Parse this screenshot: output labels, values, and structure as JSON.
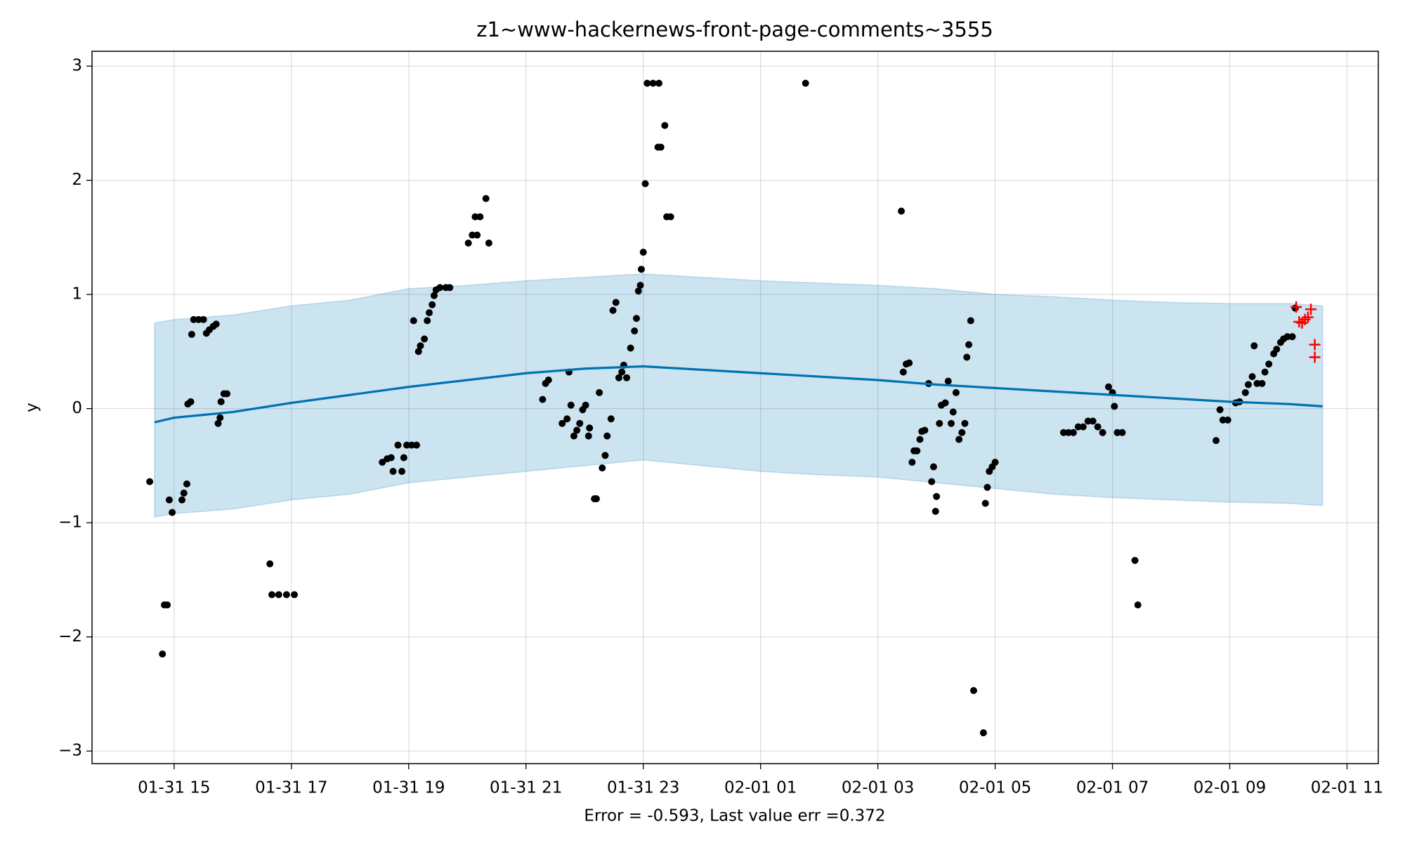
{
  "chart_data": {
    "type": "forecast",
    "title": "z1~www-hackernews-front-page-comments~3555",
    "x_label": "Error = -0.593, Last value err =0.372",
    "y_label": "y",
    "grid": true,
    "xlim": [
      "01-31 13:36",
      "02-01 11:32"
    ],
    "xticks": [
      "01-31 15",
      "01-31 17",
      "01-31 19",
      "01-31 21",
      "01-31 23",
      "02-01 01",
      "02-01 03",
      "02-01 05",
      "02-01 07",
      "02-01 09",
      "02-01 11"
    ],
    "ylim": [
      -3.11,
      3.13
    ],
    "yticks": [
      {
        "value": -3,
        "label": "−3"
      },
      {
        "value": -2,
        "label": "−2"
      },
      {
        "value": -1,
        "label": "−1"
      },
      0,
      1,
      2,
      3
    ],
    "forecast": {
      "color": "#0072b2",
      "band_color": "#0072b2",
      "x": [
        "01-31 14:40",
        "01-31 15:00",
        "01-31 16:00",
        "01-31 17:00",
        "01-31 18:00",
        "01-31 19:00",
        "01-31 20:00",
        "01-31 21:00",
        "01-31 22:00",
        "01-31 23:00",
        "02-01 00:00",
        "02-01 01:00",
        "02-01 02:00",
        "02-01 03:00",
        "02-01 04:00",
        "02-01 05:00",
        "02-01 06:00",
        "02-01 07:00",
        "02-01 08:00",
        "02-01 09:00",
        "02-01 10:00",
        "02-01 10:35"
      ],
      "values": [
        -0.12,
        -0.08,
        -0.03,
        0.05,
        0.12,
        0.19,
        0.25,
        0.31,
        0.35,
        0.37,
        0.34,
        0.31,
        0.28,
        0.25,
        0.21,
        0.18,
        0.15,
        0.12,
        0.09,
        0.06,
        0.04,
        0.02
      ],
      "upper": [
        0.75,
        0.78,
        0.82,
        0.9,
        0.95,
        1.05,
        1.08,
        1.12,
        1.15,
        1.18,
        1.15,
        1.12,
        1.1,
        1.08,
        1.05,
        1.0,
        0.98,
        0.95,
        0.93,
        0.92,
        0.92,
        0.9
      ],
      "lower": [
        -0.95,
        -0.92,
        -0.88,
        -0.8,
        -0.75,
        -0.65,
        -0.6,
        -0.55,
        -0.5,
        -0.45,
        -0.5,
        -0.55,
        -0.58,
        -0.6,
        -0.65,
        -0.7,
        -0.75,
        -0.78,
        -0.8,
        -0.82,
        -0.83,
        -0.85
      ]
    },
    "observed": {
      "color": "#000000",
      "x": [
        "01-31 14:35",
        "01-31 14:48",
        "01-31 14:50",
        "01-31 14:53",
        "01-31 14:55",
        "01-31 14:58",
        "01-31 15:08",
        "01-31 15:10",
        "01-31 15:13",
        "01-31 15:14",
        "01-31 15:17",
        "01-31 15:18",
        "01-31 15:20",
        "01-31 15:25",
        "01-31 15:30",
        "01-31 15:33",
        "01-31 15:36",
        "01-31 15:40",
        "01-31 15:43",
        "01-31 15:45",
        "01-31 15:47",
        "01-31 15:48",
        "01-31 15:51",
        "01-31 15:54",
        "01-31 16:38",
        "01-31 16:40",
        "01-31 16:47",
        "01-31 16:55",
        "01-31 17:03",
        "01-31 18:33",
        "01-31 18:38",
        "01-31 18:42",
        "01-31 18:44",
        "01-31 18:49",
        "01-31 18:53",
        "01-31 18:55",
        "01-31 18:58",
        "01-31 19:03",
        "01-31 19:05",
        "01-31 19:08",
        "01-31 19:10",
        "01-31 19:12",
        "01-31 19:16",
        "01-31 19:19",
        "01-31 19:21",
        "01-31 19:24",
        "01-31 19:26",
        "01-31 19:28",
        "01-31 19:32",
        "01-31 19:38",
        "01-31 19:42",
        "01-31 20:01",
        "01-31 20:05",
        "01-31 20:08",
        "01-31 20:10",
        "01-31 20:13",
        "01-31 20:19",
        "01-31 20:22",
        "01-31 21:17",
        "01-31 21:20",
        "01-31 21:23",
        "01-31 21:37",
        "01-31 21:42",
        "01-31 21:44",
        "01-31 21:46",
        "01-31 21:49",
        "01-31 21:52",
        "01-31 21:55",
        "01-31 21:58",
        "01-31 22:01",
        "01-31 22:04",
        "01-31 22:05",
        "01-31 22:10",
        "01-31 22:12",
        "01-31 22:15",
        "01-31 22:18",
        "01-31 22:21",
        "01-31 22:23",
        "01-31 22:27",
        "01-31 22:29",
        "01-31 22:32",
        "01-31 22:35",
        "01-31 22:38",
        "01-31 22:40",
        "01-31 22:43",
        "01-31 22:47",
        "01-31 22:51",
        "01-31 22:53",
        "01-31 22:55",
        "01-31 22:57",
        "01-31 22:58",
        "01-31 23:00",
        "01-31 23:02",
        "01-31 23:04",
        "01-31 23:10",
        "01-31 23:15",
        "01-31 23:16",
        "01-31 23:18",
        "01-31 23:22",
        "01-31 23:24",
        "01-31 23:28",
        "02-01 01:46",
        "02-01 03:24",
        "02-01 03:26",
        "02-01 03:29",
        "02-01 03:32",
        "02-01 03:35",
        "02-01 03:37",
        "02-01 03:40",
        "02-01 03:43",
        "02-01 03:45",
        "02-01 03:48",
        "02-01 03:52",
        "02-01 03:55",
        "02-01 03:57",
        "02-01 03:59",
        "02-01 04:00",
        "02-01 04:03",
        "02-01 04:05",
        "02-01 04:09",
        "02-01 04:12",
        "02-01 04:15",
        "02-01 04:17",
        "02-01 04:20",
        "02-01 04:23",
        "02-01 04:26",
        "02-01 04:29",
        "02-01 04:31",
        "02-01 04:33",
        "02-01 04:35",
        "02-01 04:38",
        "02-01 04:48",
        "02-01 04:50",
        "02-01 04:52",
        "02-01 04:54",
        "02-01 04:57",
        "02-01 05:00",
        "02-01 06:10",
        "02-01 06:15",
        "02-01 06:20",
        "02-01 06:25",
        "02-01 06:30",
        "02-01 06:35",
        "02-01 06:40",
        "02-01 06:45",
        "02-01 06:50",
        "02-01 06:56",
        "02-01 07:00",
        "02-01 07:02",
        "02-01 07:05",
        "02-01 07:10",
        "02-01 07:23",
        "02-01 07:26",
        "02-01 08:46",
        "02-01 08:50",
        "02-01 08:53",
        "02-01 08:58",
        "02-01 09:06",
        "02-01 09:10",
        "02-01 09:16",
        "02-01 09:19",
        "02-01 09:23",
        "02-01 09:25",
        "02-01 09:28",
        "02-01 09:33",
        "02-01 09:36",
        "02-01 09:40",
        "02-01 09:45",
        "02-01 09:48",
        "02-01 09:52",
        "02-01 09:55",
        "02-01 09:59",
        "02-01 10:04",
        "02-01 10:07"
      ],
      "values": [
        -0.64,
        -2.15,
        -1.72,
        -1.72,
        -0.8,
        -0.91,
        -0.8,
        -0.74,
        -0.66,
        0.04,
        0.06,
        0.65,
        0.78,
        0.78,
        0.78,
        0.66,
        0.69,
        0.72,
        0.74,
        -0.13,
        -0.08,
        0.06,
        0.13,
        0.13,
        -1.36,
        -1.63,
        -1.63,
        -1.63,
        -1.63,
        -0.47,
        -0.44,
        -0.43,
        -0.55,
        -0.32,
        -0.55,
        -0.43,
        -0.32,
        -0.32,
        0.77,
        -0.32,
        0.5,
        0.55,
        0.61,
        0.77,
        0.84,
        0.91,
        0.99,
        1.04,
        1.06,
        1.06,
        1.06,
        1.45,
        1.52,
        1.68,
        1.52,
        1.68,
        1.84,
        1.45,
        0.08,
        0.22,
        0.25,
        -0.13,
        -0.09,
        0.32,
        0.03,
        -0.24,
        -0.19,
        -0.13,
        -0.01,
        0.03,
        -0.24,
        -0.17,
        -0.79,
        -0.79,
        0.14,
        -0.52,
        -0.41,
        -0.24,
        -0.09,
        0.86,
        0.93,
        0.27,
        0.32,
        0.38,
        0.27,
        0.53,
        0.68,
        0.79,
        1.03,
        1.08,
        1.22,
        1.37,
        1.97,
        2.85,
        2.85,
        2.29,
        2.85,
        2.29,
        2.48,
        1.68,
        1.68,
        2.85,
        1.73,
        0.32,
        0.39,
        0.4,
        -0.47,
        -0.37,
        -0.37,
        -0.27,
        -0.2,
        -0.19,
        0.22,
        -0.64,
        -0.51,
        -0.9,
        -0.77,
        -0.13,
        0.03,
        0.05,
        0.24,
        -0.13,
        -0.03,
        0.14,
        -0.27,
        -0.21,
        -0.13,
        0.45,
        0.56,
        0.77,
        -2.47,
        -2.84,
        -0.83,
        -0.69,
        -0.55,
        -0.51,
        -0.47,
        -0.21,
        -0.21,
        -0.21,
        -0.16,
        -0.16,
        -0.11,
        -0.11,
        -0.16,
        -0.21,
        0.19,
        0.14,
        0.02,
        -0.21,
        -0.21,
        -1.33,
        -1.72,
        -0.28,
        -0.01,
        -0.1,
        -0.1,
        0.05,
        0.06,
        0.14,
        0.21,
        0.28,
        0.55,
        0.22,
        0.22,
        0.32,
        0.39,
        0.48,
        0.52,
        0.58,
        0.61,
        0.63,
        0.63,
        0.88
      ]
    },
    "test": {
      "color": "#ff0000",
      "x": [
        "02-01 10:08",
        "02-01 10:11",
        "02-01 10:14",
        "02-01 10:17",
        "02-01 10:20",
        "02-01 10:23",
        "02-01 10:27",
        "02-01 10:27"
      ],
      "values": [
        0.89,
        0.76,
        0.75,
        0.78,
        0.8,
        0.87,
        0.56,
        0.45
      ]
    }
  }
}
